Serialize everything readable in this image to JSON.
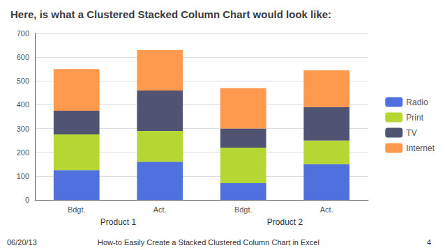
{
  "chart_data": {
    "type": "bar",
    "stacked": true,
    "title": "Here, is what a Clustered Stacked Column Chart would look like:",
    "annotations": [
      "06/20/13",
      "How-to Easily Create a Stacked Clustered Column Chart in Excel",
      "4"
    ],
    "groups": [
      "Product 1",
      "Product 2"
    ],
    "categories": [
      "Bdgt.",
      "Act.",
      "Bdgt.",
      "Act."
    ],
    "series": [
      {
        "name": "Radio",
        "values": [
          125,
          160,
          70,
          150
        ]
      },
      {
        "name": "Print",
        "values": [
          150,
          130,
          150,
          100
        ]
      },
      {
        "name": "TV",
        "values": [
          100,
          170,
          80,
          140
        ]
      },
      {
        "name": "Internet",
        "values": [
          175,
          170,
          170,
          155
        ]
      }
    ],
    "ylim": [
      0,
      700
    ],
    "yticks": [
      0,
      100,
      200,
      300,
      400,
      500,
      600,
      700
    ],
    "grid": true,
    "legend": "right"
  }
}
